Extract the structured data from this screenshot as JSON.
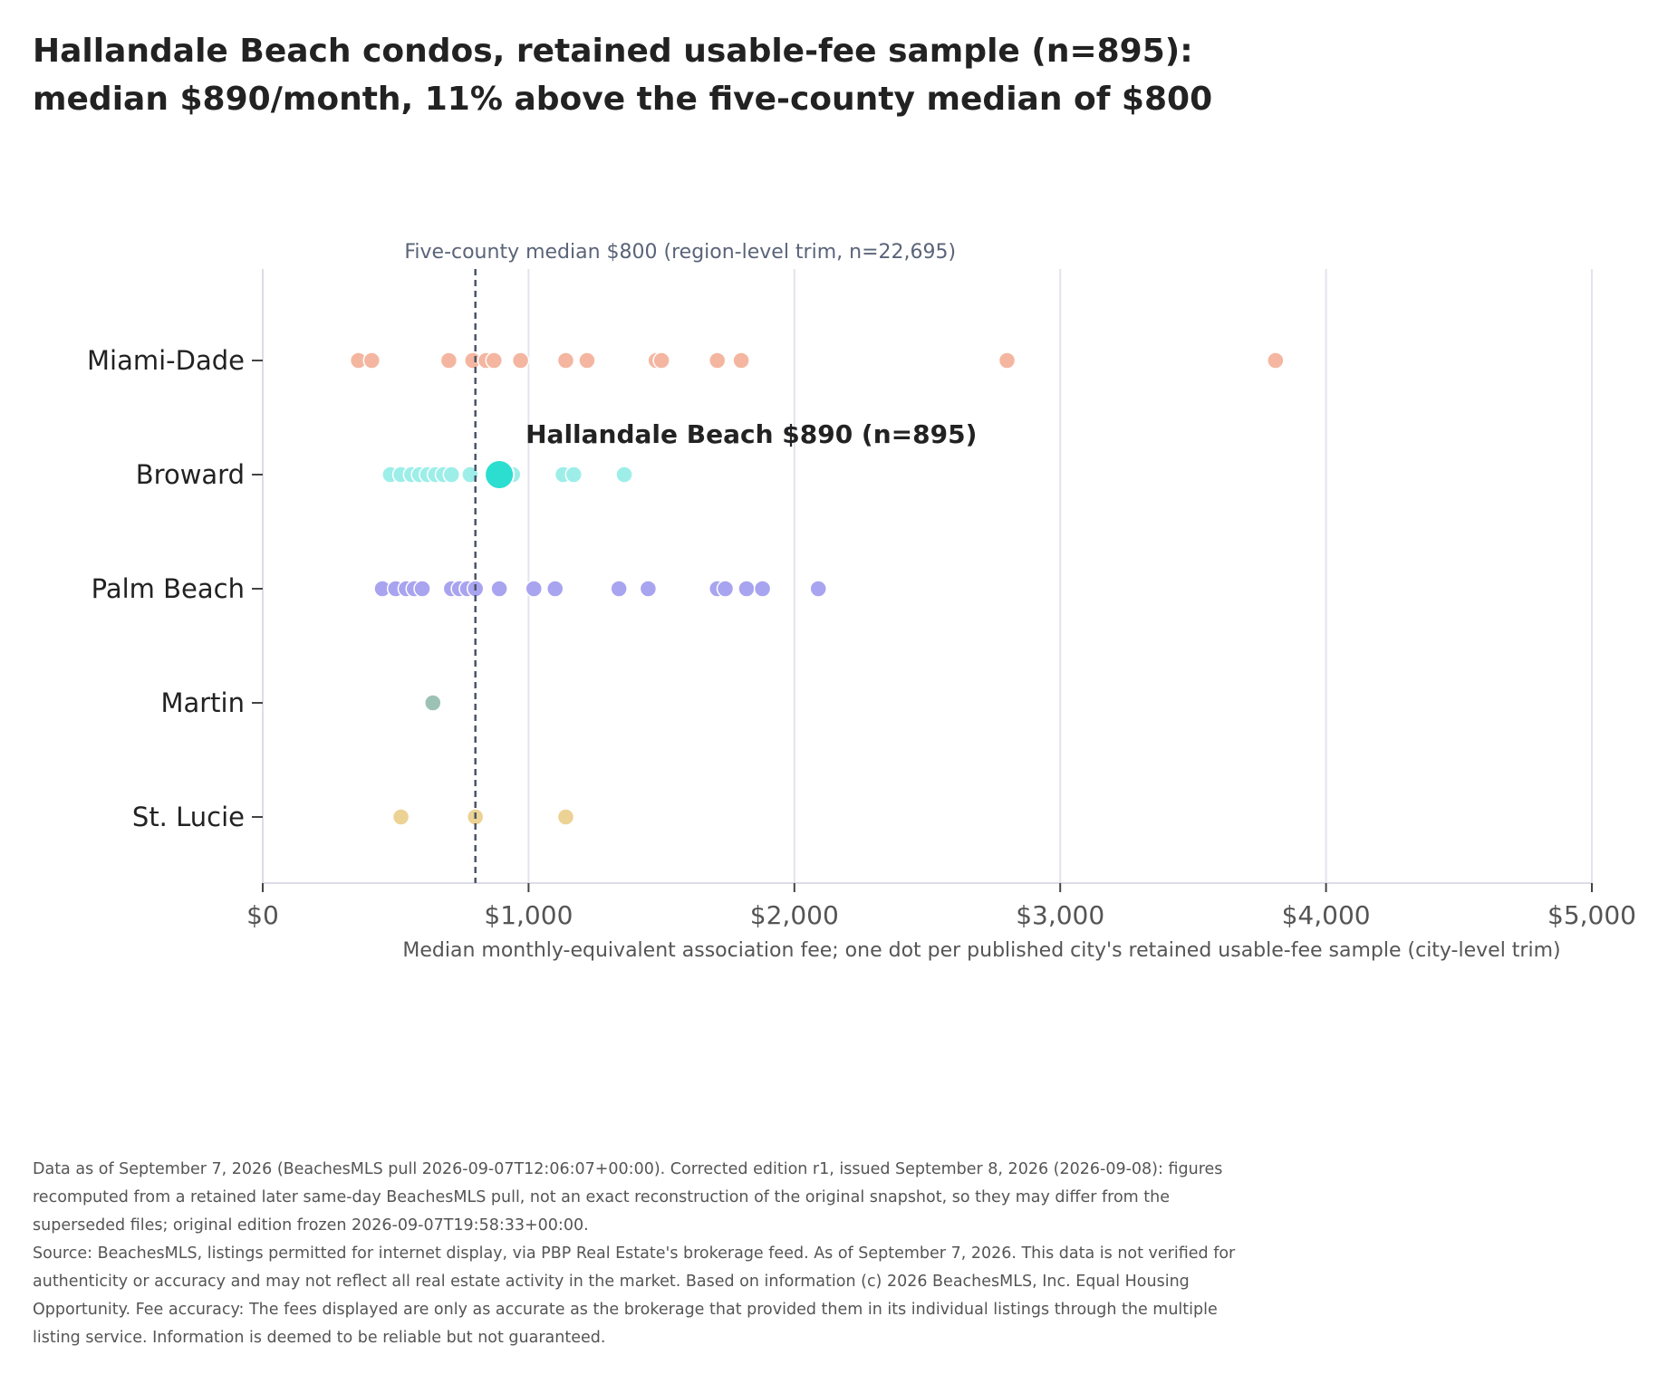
{
  "chart_data": {
    "type": "scatter",
    "title_lines": [
      "Hallandale Beach condos, retained usable-fee sample (n=895):",
      "median $890/month, 11% above the five-county median of $800"
    ],
    "xlabel": "Median monthly-equivalent association fee; one dot per published city's retained usable-fee sample (city-level trim)",
    "xlim": [
      0,
      5000
    ],
    "x_ticks": [
      0,
      1000,
      2000,
      3000,
      4000,
      5000
    ],
    "x_tick_labels": [
      "$0",
      "$1,000",
      "$2,000",
      "$3,000",
      "$4,000",
      "$5,000"
    ],
    "grid": "vertical",
    "categories": [
      "Miami-Dade",
      "Broward",
      "Palm Beach",
      "Martin",
      "St. Lucie"
    ],
    "reference_line": {
      "value": 800,
      "label": "Five-county median $800 (region-level trim, n=22,695)",
      "style": "dashed",
      "color": "#4a5568"
    },
    "highlight": {
      "category": "Broward",
      "value": 890,
      "label": "Hallandale Beach $890 (n=895)",
      "color": "#2bded0"
    },
    "series": [
      {
        "category": "Miami-Dade",
        "color": "#f4b6a0",
        "values": [
          360,
          410,
          700,
          790,
          840,
          870,
          970,
          1140,
          1220,
          1480,
          1500,
          1710,
          1800,
          2800,
          3810
        ]
      },
      {
        "category": "Broward",
        "color": "#9deee9",
        "values": [
          480,
          520,
          560,
          590,
          620,
          650,
          680,
          710,
          780,
          940,
          1130,
          1170,
          1360
        ]
      },
      {
        "category": "Palm Beach",
        "color": "#a9a4ef",
        "values": [
          450,
          500,
          540,
          570,
          600,
          710,
          740,
          770,
          800,
          890,
          1020,
          1100,
          1340,
          1450,
          1710,
          1740,
          1820,
          1880,
          2090
        ]
      },
      {
        "category": "Martin",
        "color": "#9cc2b6",
        "values": [
          640
        ]
      },
      {
        "category": "St. Lucie",
        "color": "#ecd294",
        "values": [
          520,
          800,
          1140
        ]
      }
    ]
  },
  "footer": {
    "notes": [
      "Data as of September 7, 2026 (BeachesMLS pull 2026-09-07T12:06:07+00:00). Corrected edition r1, issued September 8, 2026 (2026-09-08): figures recomputed from a retained later same-day BeachesMLS pull, not an exact reconstruction of the original snapshot, so they may differ from the superseded files; original edition frozen 2026-09-07T19:58:33+00:00.",
      "Source: BeachesMLS, listings permitted for internet display, via PBP Real Estate's brokerage feed. As of September 7, 2026. This data is not verified for authenticity or accuracy and may not reflect all real estate activity in the market. Based on information (c) 2026 BeachesMLS, Inc. Equal Housing Opportunity. Fee accuracy: The fees displayed are only as accurate as the brokerage that provided them in its individual listings through the multiple listing service. Information is deemed to be reliable but not guaranteed."
    ]
  }
}
